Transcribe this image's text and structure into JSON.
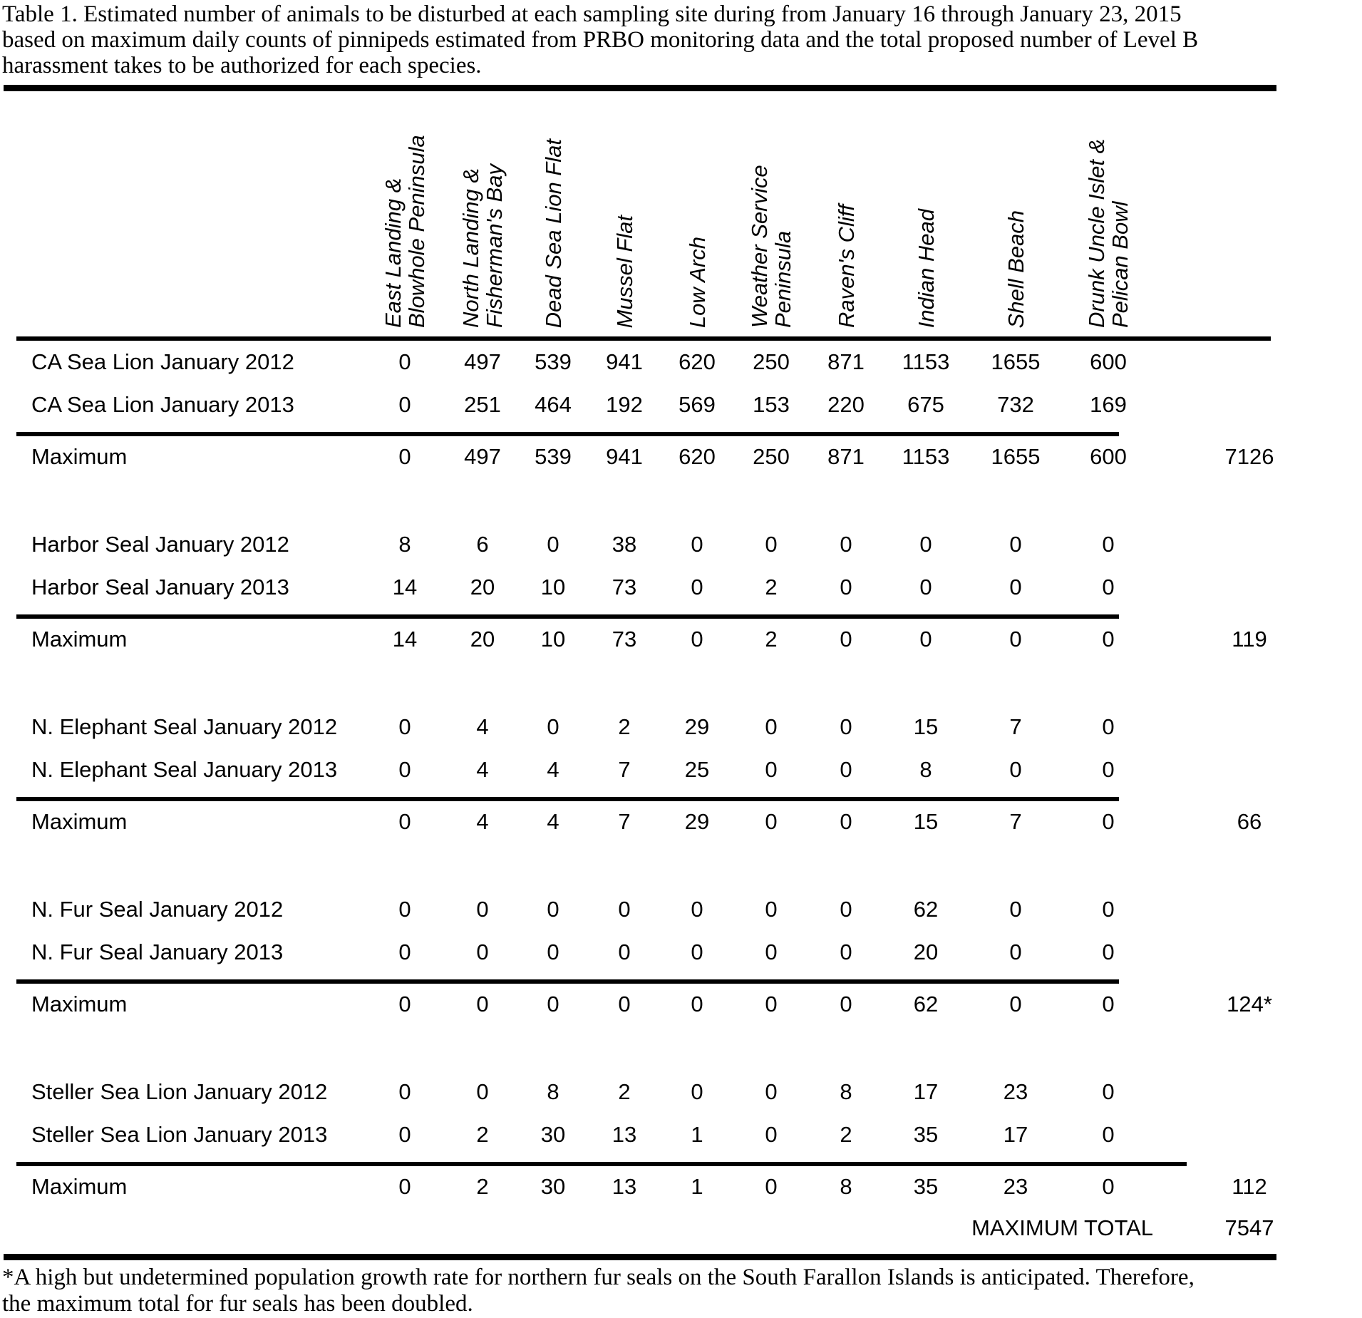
{
  "document": {
    "title_lines": [
      "Table 1. Estimated number of animals to be disturbed at each sampling site during from January 16 through January 23, 2015",
      "based on maximum daily counts of pinnipeds estimated from PRBO monitoring data and the total proposed number of Level B",
      "harassment takes to be authorized for each species."
    ],
    "footnote_lines": [
      "*A high but undetermined population growth rate for northern fur seals on the South Farallon Islands is anticipated.  Therefore,",
      "the maximum total for fur seals has been doubled."
    ]
  },
  "table": {
    "site_headers": [
      "East Landing & Blowhole Peninsula",
      "North Landing & Fisherman's Bay",
      "Dead Sea Lion Flat",
      "Mussel Flat",
      "Low Arch",
      "Weather Service Peninsula",
      "Raven's Cliff",
      "Indian Head",
      "Shell Beach",
      "Drunk Uncle Islet & Pelican Bowl"
    ],
    "sections": [
      {
        "name": "ca-sea-lion",
        "rows": [
          {
            "label": "CA Sea Lion January 2012",
            "values": [
              "0",
              "497",
              "539",
              "941",
              "620",
              "250",
              "871",
              "1153",
              "1655",
              "600"
            ],
            "total": ""
          },
          {
            "label": "CA Sea Lion January 2013",
            "values": [
              "0",
              "251",
              "464",
              "192",
              "569",
              "153",
              "220",
              "675",
              "732",
              "169"
            ],
            "total": ""
          },
          {
            "label": "Maximum",
            "values": [
              "0",
              "497",
              "539",
              "941",
              "620",
              "250",
              "871",
              "1153",
              "1655",
              "600"
            ],
            "total": "7126"
          }
        ]
      },
      {
        "name": "harbor-seal",
        "rows": [
          {
            "label": "Harbor Seal January 2012",
            "values": [
              "8",
              "6",
              "0",
              "38",
              "0",
              "0",
              "0",
              "0",
              "0",
              "0"
            ],
            "total": ""
          },
          {
            "label": "Harbor Seal January 2013",
            "values": [
              "14",
              "20",
              "10",
              "73",
              "0",
              "2",
              "0",
              "0",
              "0",
              "0"
            ],
            "total": ""
          },
          {
            "label": "Maximum",
            "values": [
              "14",
              "20",
              "10",
              "73",
              "0",
              "2",
              "0",
              "0",
              "0",
              "0"
            ],
            "total": "119"
          }
        ]
      },
      {
        "name": "n-elephant-seal",
        "rows": [
          {
            "label": "N. Elephant Seal January 2012",
            "values": [
              "0",
              "4",
              "0",
              "2",
              "29",
              "0",
              "0",
              "15",
              "7",
              "0"
            ],
            "total": ""
          },
          {
            "label": "N. Elephant Seal January 2013",
            "values": [
              "0",
              "4",
              "4",
              "7",
              "25",
              "0",
              "0",
              "8",
              "0",
              "0"
            ],
            "total": ""
          },
          {
            "label": "Maximum",
            "values": [
              "0",
              "4",
              "4",
              "7",
              "29",
              "0",
              "0",
              "15",
              "7",
              "0"
            ],
            "total": "66"
          }
        ]
      },
      {
        "name": "n-fur-seal",
        "rows": [
          {
            "label": "N. Fur Seal January 2012",
            "values": [
              "0",
              "0",
              "0",
              "0",
              "0",
              "0",
              "0",
              "62",
              "0",
              "0"
            ],
            "total": ""
          },
          {
            "label": "N. Fur Seal January 2013",
            "values": [
              "0",
              "0",
              "0",
              "0",
              "0",
              "0",
              "0",
              "20",
              "0",
              "0"
            ],
            "total": ""
          },
          {
            "label": "Maximum",
            "values": [
              "0",
              "0",
              "0",
              "0",
              "0",
              "0",
              "0",
              "62",
              "0",
              "0"
            ],
            "total": "124*"
          }
        ]
      },
      {
        "name": "steller-sea-lion",
        "rows": [
          {
            "label": "Steller Sea Lion January 2012",
            "values": [
              "0",
              "0",
              "8",
              "2",
              "0",
              "0",
              "8",
              "17",
              "23",
              "0"
            ],
            "total": ""
          },
          {
            "label": "Steller Sea Lion January 2013",
            "values": [
              "0",
              "2",
              "30",
              "13",
              "1",
              "0",
              "2",
              "35",
              "17",
              "0"
            ],
            "total": ""
          },
          {
            "label": "Maximum",
            "values": [
              "0",
              "2",
              "30",
              "13",
              "1",
              "0",
              "8",
              "35",
              "23",
              "0"
            ],
            "total": "112"
          }
        ]
      }
    ],
    "grand_total": {
      "label": "MAXIMUM TOTAL",
      "value": "7547"
    }
  }
}
